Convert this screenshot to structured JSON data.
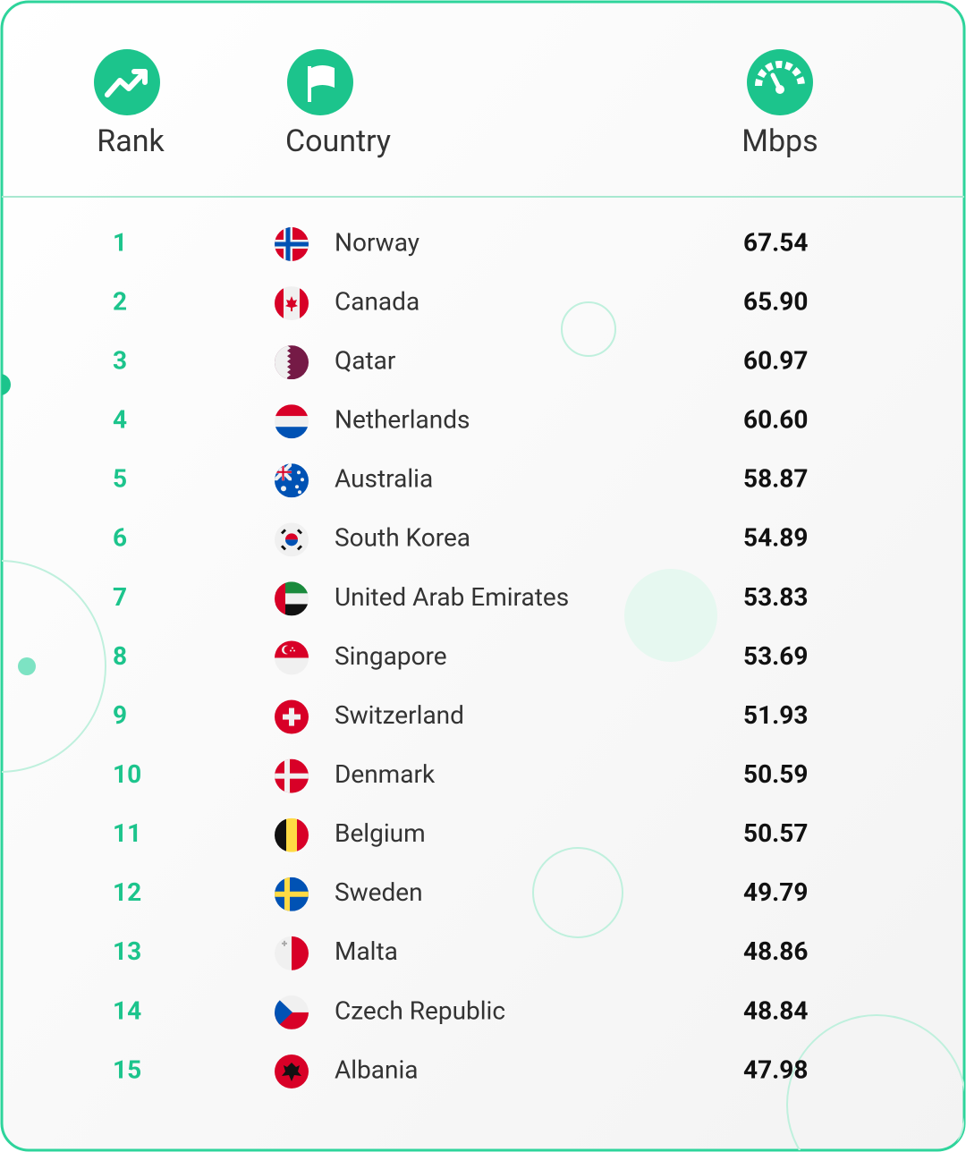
{
  "header": {
    "columns": [
      "Rank",
      "Country",
      "Mbps"
    ]
  },
  "table": {
    "rows": [
      [
        1,
        "Norway",
        "67.54"
      ],
      [
        2,
        "Canada",
        "65.90"
      ],
      [
        3,
        "Qatar",
        "60.97"
      ],
      [
        4,
        "Netherlands",
        "60.60"
      ],
      [
        5,
        "Australia",
        "58.87"
      ],
      [
        6,
        "South Korea",
        "54.89"
      ],
      [
        7,
        "United Arab Emirates",
        "53.83"
      ],
      [
        8,
        "Singapore",
        "53.69"
      ],
      [
        9,
        "Switzerland",
        "51.93"
      ],
      [
        10,
        "Denmark",
        "50.59"
      ],
      [
        11,
        "Belgium",
        "50.57"
      ],
      [
        12,
        "Sweden",
        "49.79"
      ],
      [
        13,
        "Malta",
        "48.86"
      ],
      [
        14,
        "Czech Republic",
        "48.84"
      ],
      [
        15,
        "Albania",
        "47.98"
      ]
    ]
  }
}
